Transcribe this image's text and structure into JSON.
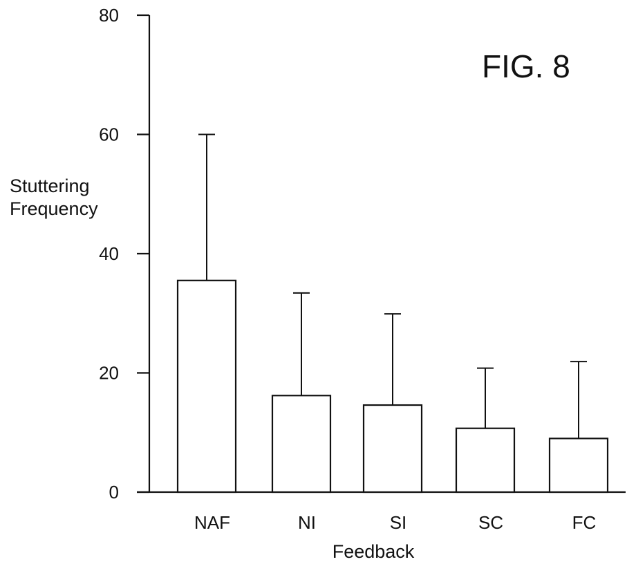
{
  "figure_label": "FIG. 8",
  "chart_data": {
    "type": "bar",
    "title": "",
    "xlabel": "Feedback",
    "ylabel_lines": [
      "Stuttering",
      "Frequency"
    ],
    "categories": [
      "NAF",
      "NI",
      "SI",
      "SC",
      "FC"
    ],
    "series": [
      {
        "values": [
          35.5,
          16.2,
          14.6,
          10.7,
          9.0
        ],
        "error_upper": [
          60.0,
          33.4,
          29.9,
          20.8,
          21.9
        ]
      }
    ],
    "ylim": [
      0,
      80
    ],
    "yticks": [
      0,
      20,
      40,
      60,
      80
    ],
    "grid": false,
    "legend": "none"
  }
}
